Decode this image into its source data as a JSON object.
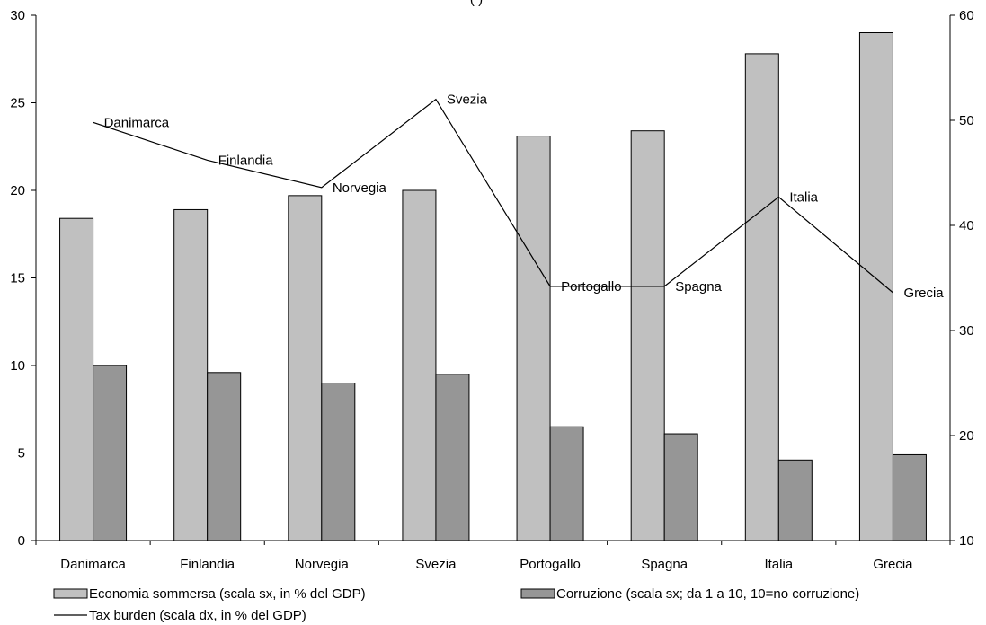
{
  "chart_data": {
    "type": "bar",
    "title": "(                         )",
    "categories": [
      "Danimarca",
      "Finlandia",
      "Norvegia",
      "Svezia",
      "Portogallo",
      "Spagna",
      "Italia",
      "Grecia"
    ],
    "series": [
      {
        "name": "Economia sommersa (scala sx, in % del GDP)",
        "type": "bar",
        "axis": "left",
        "color": "#c0c0c0",
        "values": [
          18.4,
          18.9,
          19.7,
          20.0,
          23.1,
          23.4,
          27.8,
          29.0
        ]
      },
      {
        "name": "Corruzione  (scala sx; da 1 a 10, 10=no corruzione)",
        "type": "bar",
        "axis": "left",
        "color": "#969696",
        "values": [
          10.0,
          9.6,
          9.0,
          9.5,
          6.5,
          6.1,
          4.6,
          4.9
        ]
      },
      {
        "name": "Tax burden (scala dx, in % del GDP)",
        "type": "line",
        "axis": "right",
        "color": "#000000",
        "values": [
          49.8,
          46.2,
          43.6,
          52.0,
          34.2,
          34.2,
          42.7,
          33.6
        ]
      }
    ],
    "y_left": {
      "min": 0,
      "max": 30,
      "ticks": [
        0,
        5,
        10,
        15,
        20,
        25,
        30
      ]
    },
    "y_right": {
      "min": 10,
      "max": 60,
      "ticks": [
        10,
        20,
        30,
        40,
        50,
        60
      ]
    },
    "grid": false,
    "legend_position": "bottom"
  }
}
